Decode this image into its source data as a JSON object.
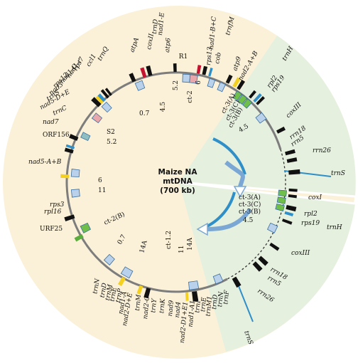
{
  "center": {
    "line1": "Maize NA",
    "line2": "mtDNA",
    "line3": "(700 kb)"
  },
  "colors": {
    "yellow_bg": "#fbf1d8",
    "green_bg": "#e6f0df",
    "ring": "#808080",
    "box_blue": "#b9d1ea",
    "box_pink": "#e8a7ab",
    "box_green": "#6fbf4a",
    "box_teal": "#8fbfc2",
    "gene_black": "#111111",
    "gene_red": "#c41230",
    "gene_yellow": "#f4d020",
    "tick_blue": "#2f8fc8"
  },
  "labels": [
    {
      "id": "atpA",
      "text": "atpA",
      "style": "i"
    },
    {
      "id": "coxII",
      "text": "coxII",
      "style": "i"
    },
    {
      "id": "trnD1",
      "text": "trnD",
      "style": "i"
    },
    {
      "id": "nad1E",
      "text": "nad1-E",
      "style": "i"
    },
    {
      "id": "rps13",
      "text": "rps13",
      "style": "i"
    },
    {
      "id": "cob",
      "text": "cob",
      "style": "i"
    },
    {
      "id": "trnfM",
      "text": "trnfM",
      "style": "i"
    },
    {
      "id": "nad1BC",
      "text": "nad1-B+C",
      "style": "i"
    },
    {
      "id": "atp9",
      "text": "atp9",
      "style": "i"
    },
    {
      "id": "nad2AB",
      "text": "nad2-A+B",
      "style": "i"
    },
    {
      "id": "atp6",
      "text": "atp6",
      "style": "i"
    },
    {
      "id": "R1",
      "text": "R1",
      "style": "u"
    },
    {
      "id": "trnH1",
      "text": "trnH",
      "style": "i"
    },
    {
      "id": "rpl2a",
      "text": "rpl2",
      "style": "i"
    },
    {
      "id": "rps19a",
      "text": "rps19",
      "style": "i"
    },
    {
      "id": "coxIIIa",
      "text": "coxIII",
      "style": "i"
    },
    {
      "id": "rrn18a",
      "text": "rrn18",
      "style": "i"
    },
    {
      "id": "rrn5a",
      "text": "rrn5",
      "style": "i"
    },
    {
      "id": "rrn26a",
      "text": "rrn26",
      "style": "i"
    },
    {
      "id": "trnS1",
      "text": "trnS",
      "style": "i"
    },
    {
      "id": "coxI",
      "text": "coxI",
      "style": "i"
    },
    {
      "id": "rpl2b",
      "text": "rpl2",
      "style": "i"
    },
    {
      "id": "rps19b",
      "text": "rps19",
      "style": "i"
    },
    {
      "id": "trnH2",
      "text": "trnH",
      "style": "i"
    },
    {
      "id": "coxIIIb",
      "text": "coxIII",
      "style": "i"
    },
    {
      "id": "rrn18b",
      "text": "rrn18",
      "style": "i"
    },
    {
      "id": "rrn5b",
      "text": "rrn5",
      "style": "i"
    },
    {
      "id": "rrn26b",
      "text": "rrn26",
      "style": "i"
    },
    {
      "id": "trnS2",
      "text": "trnS",
      "style": "i"
    },
    {
      "id": "trnQ",
      "text": "trnQ",
      "style": "i"
    },
    {
      "id": "ccl1",
      "text": "ccl1",
      "style": "i"
    },
    {
      "id": "rps7",
      "text": "rps7",
      "style": "i"
    },
    {
      "id": "nad1r",
      "text": "nad1-r",
      "style": "i"
    },
    {
      "id": "nad1C",
      "text": "nad1-C",
      "style": "i"
    },
    {
      "id": "rps12",
      "text": "rps12",
      "style": "i"
    },
    {
      "id": "nad3",
      "text": "nad3",
      "style": "i"
    },
    {
      "id": "trnS3",
      "text": "trnS",
      "style": "i"
    },
    {
      "id": "nad5DE",
      "text": "nad5-D+E",
      "style": "i"
    },
    {
      "id": "trnC",
      "text": "trnC",
      "style": "i"
    },
    {
      "id": "nad7",
      "text": "nad7",
      "style": "i"
    },
    {
      "id": "ORF156",
      "text": "ORF156",
      "style": "u"
    },
    {
      "id": "nad5AB",
      "text": "nad5-A+B",
      "style": "i"
    },
    {
      "id": "rps3",
      "text": "rps3",
      "style": "i"
    },
    {
      "id": "rpl16",
      "text": "rpl16",
      "style": "i"
    },
    {
      "id": "URF25",
      "text": "URF25",
      "style": "u"
    },
    {
      "id": "trnN",
      "text": "trnN",
      "style": "i"
    },
    {
      "id": "trnD2",
      "text": "trnD",
      "style": "i"
    },
    {
      "id": "trnM1",
      "text": "trnM",
      "style": "i"
    },
    {
      "id": "trnE1",
      "text": "trnE",
      "style": "i"
    },
    {
      "id": "trnP1",
      "text": "trnP",
      "style": "i"
    },
    {
      "id": "nad1A",
      "text": "nad1-A",
      "style": "i"
    },
    {
      "id": "nad2D",
      "text": "nad2-D+E",
      "style": "i"
    },
    {
      "id": "trnM2",
      "text": "trnM",
      "style": "i"
    },
    {
      "id": "nad2C",
      "text": "nad2-C",
      "style": "i"
    },
    {
      "id": "trnY",
      "text": "trnY",
      "style": "i"
    },
    {
      "id": "trnK",
      "text": "trnK",
      "style": "i"
    },
    {
      "id": "nad9",
      "text": "nad9",
      "style": "i"
    },
    {
      "id": "nad4",
      "text": "nad4",
      "style": "i"
    },
    {
      "id": "nad2DE",
      "text": "nad2-D1+E1",
      "style": "i"
    },
    {
      "id": "nad1A1",
      "text": "nad1-A1",
      "style": "i"
    },
    {
      "id": "trnP2",
      "text": "trnP",
      "style": "i"
    },
    {
      "id": "trnE2",
      "text": "trnE",
      "style": "i"
    },
    {
      "id": "trnM3",
      "text": "trnM1",
      "style": "i"
    },
    {
      "id": "trnD3",
      "text": "trnD",
      "style": "i"
    },
    {
      "id": "trnN2",
      "text": "trnN",
      "style": "i"
    },
    {
      "id": "trnF",
      "text": "trnF",
      "style": "i"
    }
  ],
  "repeats": [
    {
      "id": "r_07a",
      "text": "0.7"
    },
    {
      "id": "r_45a",
      "text": "4.5"
    },
    {
      "id": "r_52a",
      "text": "5.2"
    },
    {
      "id": "r_ct2",
      "text": "ct-2"
    },
    {
      "id": "r_6a",
      "text": "6"
    },
    {
      "id": "r_ct3A",
      "text": "ct-3(A)"
    },
    {
      "id": "r_ct3C",
      "text": "ct-3(C)"
    },
    {
      "id": "r_ct3B",
      "text": "ct-3(B)"
    },
    {
      "id": "r_45b",
      "text": "4.5"
    },
    {
      "id": "r_S2",
      "text": "S2"
    },
    {
      "id": "r_52b",
      "text": "5.2"
    },
    {
      "id": "r_6b",
      "text": "6"
    },
    {
      "id": "r_11a",
      "text": "11"
    },
    {
      "id": "r_ct2B",
      "text": "ct-2(B)"
    },
    {
      "id": "r_07b",
      "text": "0.7"
    },
    {
      "id": "r_14Aa",
      "text": "14A"
    },
    {
      "id": "r_ct12",
      "text": "ct-1.2"
    },
    {
      "id": "r_11b",
      "text": "11"
    },
    {
      "id": "r_14Ab",
      "text": "14A"
    },
    {
      "id": "r_ct3A2",
      "text": "ct-3(A)"
    },
    {
      "id": "r_ct3C2",
      "text": "ct-3(C)"
    },
    {
      "id": "r_ct3B2",
      "text": "ct-3(B)"
    },
    {
      "id": "r_45c",
      "text": "4.5"
    }
  ]
}
